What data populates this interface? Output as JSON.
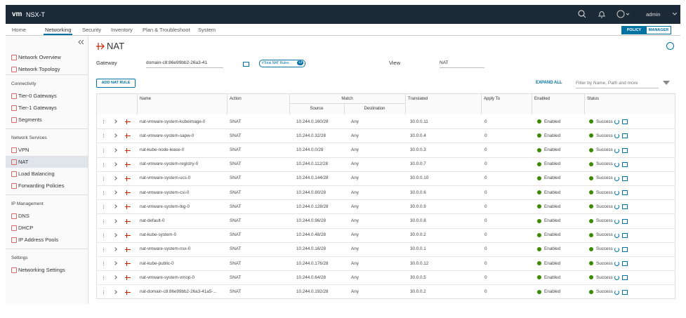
{
  "header": {
    "logo": "vm",
    "product": "NSX-T",
    "user": "admin"
  },
  "nav": {
    "tabs": [
      "Home",
      "Networking",
      "Security",
      "Inventory",
      "Plan & Troubleshoot",
      "System"
    ]
  },
  "mode": [
    "POLICY",
    "MANAGER"
  ],
  "sidebar": {
    "top": [
      "Network Overview",
      "Network Topology"
    ],
    "groups": [
      {
        "title": "Connectivity",
        "items": [
          "Tier-0 Gateways",
          "Tier-1 Gateways",
          "Segments"
        ]
      },
      {
        "title": "Network Services",
        "items": [
          "VPN",
          "NAT",
          "Load Balancing",
          "Forwarding Policies"
        ]
      },
      {
        "title": "IP Management",
        "items": [
          "DNS",
          "DHCP",
          "IP Address Pools"
        ]
      },
      {
        "title": "Settings",
        "items": [
          "Networking Settings"
        ]
      }
    ]
  },
  "page": {
    "title": "NAT",
    "gateway_label": "Gateway",
    "gateway": "domain-c8:86e99bb2-26a3-41",
    "badge": "#Total NAT Rules",
    "badge_count": 13,
    "view_label": "View",
    "view": "NAT",
    "add_button": "ADD NAT RULE",
    "expand_all": "EXPAND ALL",
    "filter_placeholder": "Filter by Name, Path and more"
  },
  "table": {
    "headers": {
      "name": "Name",
      "action": "Action",
      "match": "Match",
      "source": "Source",
      "destination": "Destination",
      "translated": "Translated",
      "apply_to": "Apply To",
      "enabled": "Enabled",
      "status": "Status"
    },
    "rows": [
      [
        "nat-vmware-system-kubeimage-0",
        "SNAT",
        "10.244.0.160/28",
        "Any",
        "30.0.0.11",
        0,
        "Enabled",
        "Success"
      ],
      [
        "nat-vmware-system-sapw-0",
        "SNAT",
        "10.244.0.32/28",
        "Any",
        "30.0.0.4",
        0,
        "Enabled",
        "Success"
      ],
      [
        "nat-kube-node-lease-0",
        "SNAT",
        "10.244.0.0/28",
        "Any",
        "30.0.0.3",
        0,
        "Enabled",
        "Success"
      ],
      [
        "nat-vmware-system-registry-0",
        "SNAT",
        "10.244.0.112/28",
        "Any",
        "30.0.0.7",
        0,
        "Enabled",
        "Success"
      ],
      [
        "nat-vmware-system-ucs-0",
        "SNAT",
        "10.244.0.144/28",
        "Any",
        "30.0.0.10",
        0,
        "Enabled",
        "Success"
      ],
      [
        "nat-vmware-system-csi-0",
        "SNAT",
        "10.244.0.80/28",
        "Any",
        "30.0.0.6",
        0,
        "Enabled",
        "Success"
      ],
      [
        "nat-vmware-system-tkg-0",
        "SNAT",
        "10.244.0.128/28",
        "Any",
        "30.0.0.9",
        0,
        "Enabled",
        "Success"
      ],
      [
        "nat-default-0",
        "SNAT",
        "10.244.0.96/28",
        "Any",
        "30.0.0.8",
        0,
        "Enabled",
        "Success"
      ],
      [
        "nat-kube-system-0",
        "SNAT",
        "10.244.0.48/28",
        "Any",
        "30.0.0.2",
        0,
        "Enabled",
        "Success"
      ],
      [
        "nat-vmware-system-nsx-0",
        "SNAT",
        "10.244.0.16/28",
        "Any",
        "30.0.0.1",
        0,
        "Enabled",
        "Success"
      ],
      [
        "nat-kube-public-0",
        "SNAT",
        "10.244.0.176/28",
        "Any",
        "30.0.0.12",
        0,
        "Enabled",
        "Success"
      ],
      [
        "nat-vmware-system-vmop-0",
        "SNAT",
        "10.244.0.64/28",
        "Any",
        "30.0.0.5",
        0,
        "Enabled",
        "Success"
      ],
      [
        "nat-domain-c8:86e99bb2-26a3-41a5-...",
        "SNAT",
        "10.244.0.192/28",
        "Any",
        "30.0.0.2",
        0,
        "Enabled",
        "Success"
      ]
    ]
  }
}
